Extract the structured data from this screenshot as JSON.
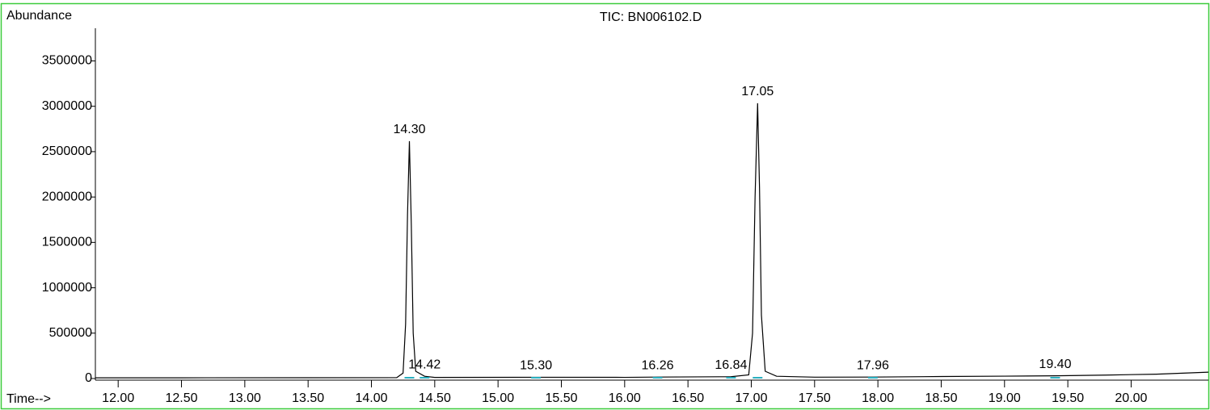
{
  "chart_data": {
    "type": "line",
    "title": "TIC: BN006102.D",
    "y_label": "Abundance",
    "x_label": "Time-->",
    "xlim": [
      11.82,
      20.61
    ],
    "ylim": [
      0,
      3860000
    ],
    "xticks": [
      {
        "value": 12,
        "label": "12.00"
      },
      {
        "value": 12.5,
        "label": "12.50"
      },
      {
        "value": 13,
        "label": "13.00"
      },
      {
        "value": 13.5,
        "label": "13.50"
      },
      {
        "value": 14,
        "label": "14.00"
      },
      {
        "value": 14.5,
        "label": "14.50"
      },
      {
        "value": 15,
        "label": "15.00"
      },
      {
        "value": 15.5,
        "label": "15.50"
      },
      {
        "value": 16,
        "label": "16.00"
      },
      {
        "value": 16.5,
        "label": "16.50"
      },
      {
        "value": 17,
        "label": "17.00"
      },
      {
        "value": 17.5,
        "label": "17.50"
      },
      {
        "value": 18,
        "label": "18.00"
      },
      {
        "value": 18.5,
        "label": "18.50"
      },
      {
        "value": 19,
        "label": "19.00"
      },
      {
        "value": 19.5,
        "label": "19.50"
      },
      {
        "value": 20,
        "label": "20.00"
      }
    ],
    "yticks": [
      0,
      500000,
      1000000,
      1500000,
      2000000,
      2500000,
      3000000,
      3500000
    ],
    "series": [
      {
        "color": "#000000",
        "x": [
          11.82,
          12.5,
          13.5,
          14.2,
          14.25,
          14.27,
          14.285,
          14.3,
          14.315,
          14.33,
          14.35,
          14.42,
          14.5,
          15.3,
          16.0,
          16.26,
          16.84,
          16.98,
          17.01,
          17.03,
          17.05,
          17.065,
          17.08,
          17.11,
          17.2,
          17.5,
          17.96,
          18.5,
          19.0,
          19.4,
          19.8,
          20.2,
          20.61
        ],
        "values": [
          8000,
          8000,
          9000,
          10000,
          60000,
          600000,
          1800000,
          2616000,
          1700000,
          500000,
          80000,
          25000,
          12000,
          14000,
          13000,
          16000,
          20000,
          40000,
          500000,
          2000000,
          3034000,
          2100000,
          700000,
          80000,
          25000,
          15000,
          16000,
          22000,
          26000,
          30000,
          38000,
          48000,
          70000
        ]
      }
    ],
    "peak_labels": [
      {
        "label": "14.30",
        "x": 14.3
      },
      {
        "label": "14.42",
        "x": 14.42
      },
      {
        "label": "15.30",
        "x": 15.3
      },
      {
        "label": "16.26",
        "x": 16.26
      },
      {
        "label": "16.84",
        "x": 16.84
      },
      {
        "label": "17.05",
        "x": 17.05
      },
      {
        "label": "17.96",
        "x": 17.96
      },
      {
        "label": "19.40",
        "x": 19.4
      }
    ],
    "marker_color": "#2ab0c0"
  }
}
